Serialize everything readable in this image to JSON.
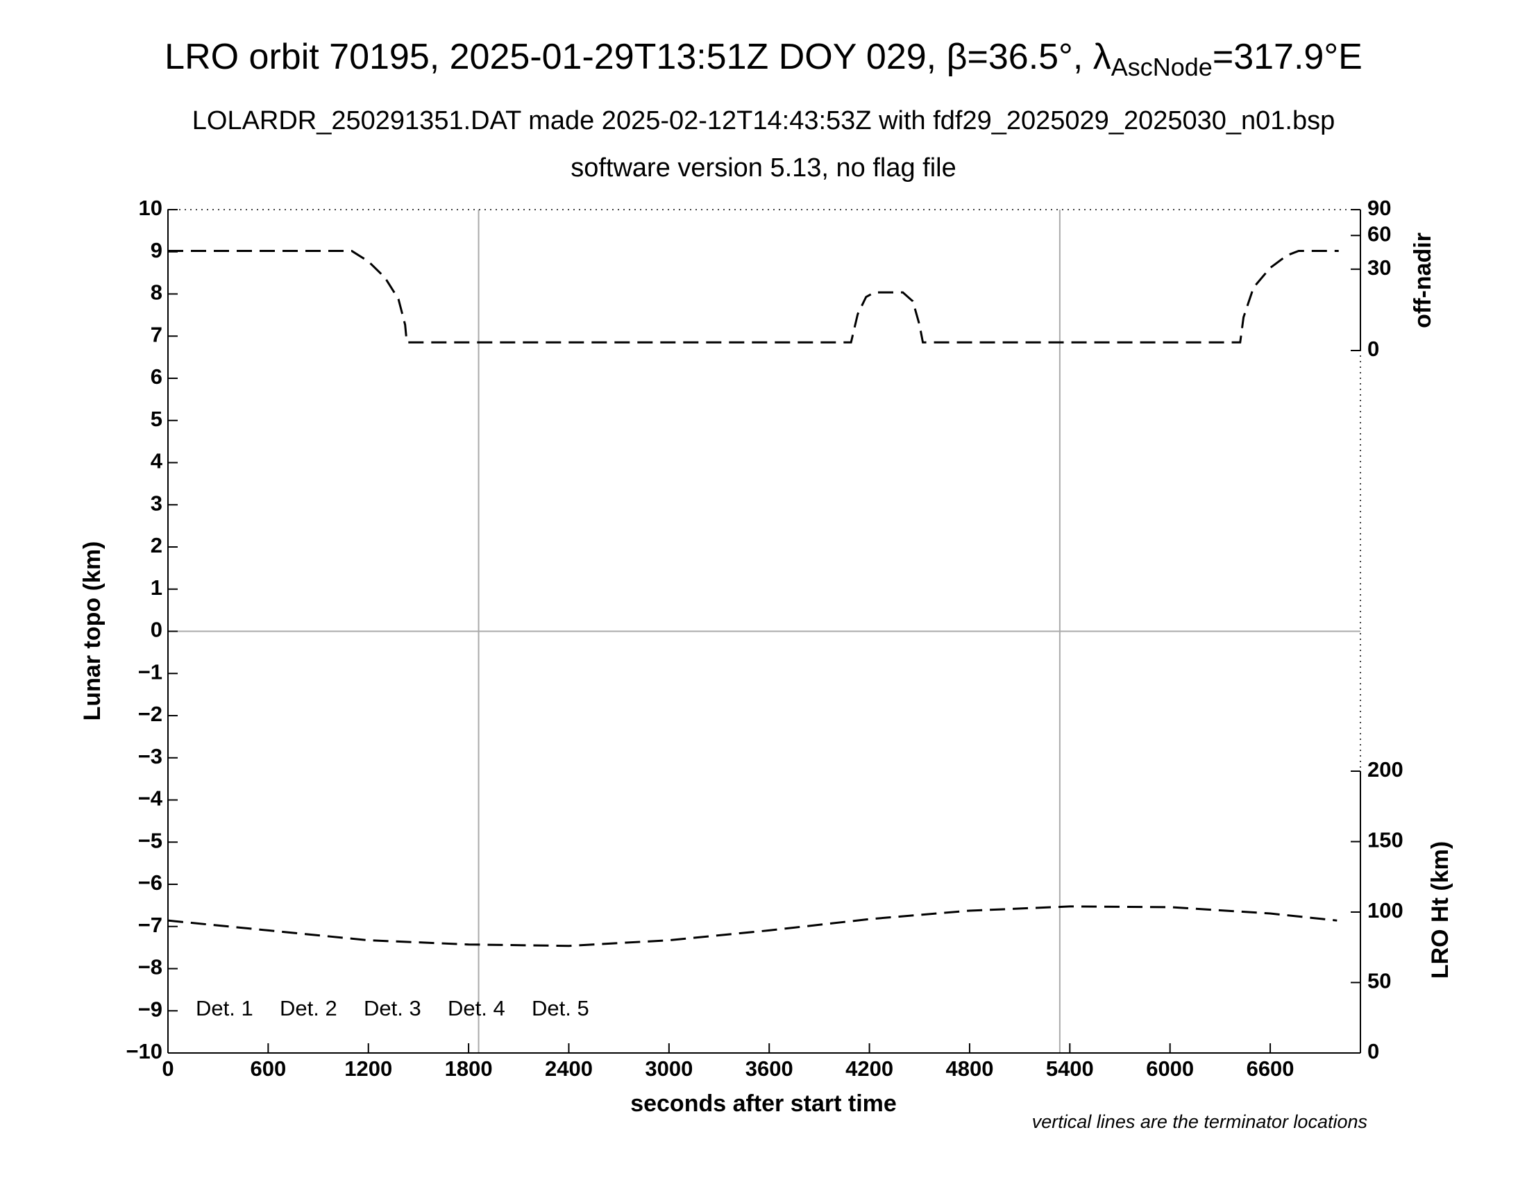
{
  "chart_data": {
    "type": "line",
    "title": "LRO orbit 70195, 2025-01-29T13:51Z DOY 029, β=36.5°, λ",
    "title_subscript": "AscNode",
    "title_suffix": "=317.9°E",
    "subtitle": [
      "LOLARDR_250291351.DAT made 2025-02-12T14:43:53Z with fdf29_2025029_2025030_n01.bsp",
      "software version 5.13, no flag file"
    ],
    "xlabel": "seconds after start time",
    "ylabel": "Lunar topo (km)",
    "y2label": "off-nadir",
    "y3label": "LRO Ht (km)",
    "note": "vertical lines are the terminator locations",
    "xlim": [
      0,
      7140
    ],
    "xticks": [
      0,
      600,
      1200,
      1800,
      2400,
      3000,
      3600,
      4200,
      4800,
      5400,
      6000,
      6600
    ],
    "ylim": [
      -10,
      10
    ],
    "yticks": [
      {
        "value": -10,
        "label": "−10"
      },
      {
        "value": -9,
        "label": "−9"
      },
      {
        "value": -8,
        "label": "−8"
      },
      {
        "value": -7,
        "label": "−7"
      },
      {
        "value": -6,
        "label": "−6"
      },
      {
        "value": -5,
        "label": "−5"
      },
      {
        "value": -4,
        "label": "−4"
      },
      {
        "value": -3,
        "label": "−3"
      },
      {
        "value": -2,
        "label": "−2"
      },
      {
        "value": -1,
        "label": "−1"
      },
      0,
      1,
      2,
      3,
      4,
      5,
      6,
      7,
      8,
      9,
      10
    ],
    "y2lim": [
      0,
      90
    ],
    "y2ticks": [
      0,
      30,
      60,
      90
    ],
    "y2scale": "sqrt",
    "y3lim": [
      0,
      200
    ],
    "y3ticks": [
      0,
      50,
      100,
      150,
      200
    ],
    "vlines": [
      1860,
      5340
    ],
    "hlines": [
      0
    ],
    "series": [
      {
        "axis": "y2",
        "color": "#000000",
        "x": [
          0,
          1100,
          1200,
          1300,
          1380,
          1420,
          1430,
          4090,
          4130,
          4180,
          4230,
          4400,
          4460,
          4500,
          4520,
          6420,
          6440,
          6500,
          6600,
          6700,
          6770,
          7010
        ],
        "values": [
          45,
          45,
          36,
          24,
          12,
          3,
          0.3,
          0.3,
          6,
          13,
          15.3,
          15.3,
          11,
          3,
          0.3,
          0.3,
          5,
          18,
          31,
          41,
          45,
          45
        ]
      },
      {
        "axis": "y3",
        "color": "#000000",
        "x": [
          0,
          600,
          1200,
          1800,
          2400,
          3000,
          3600,
          4200,
          4800,
          5400,
          6000,
          6600,
          7000
        ],
        "values": [
          94,
          87,
          80,
          77,
          76,
          80,
          87,
          95,
          101,
          104,
          103.5,
          99,
          94
        ]
      }
    ],
    "legend": [
      {
        "name": "Det. 1",
        "color": "#000000"
      },
      {
        "name": "Det. 2",
        "color": "#0000ff"
      },
      {
        "name": "Det. 3",
        "color": "#00ee00"
      },
      {
        "name": "Det. 4",
        "color": "#ffa500"
      },
      {
        "name": "Det. 5",
        "color": "#ff0000"
      }
    ],
    "legend_corner": "lower left",
    "grid_color": "#aaaaaa"
  }
}
